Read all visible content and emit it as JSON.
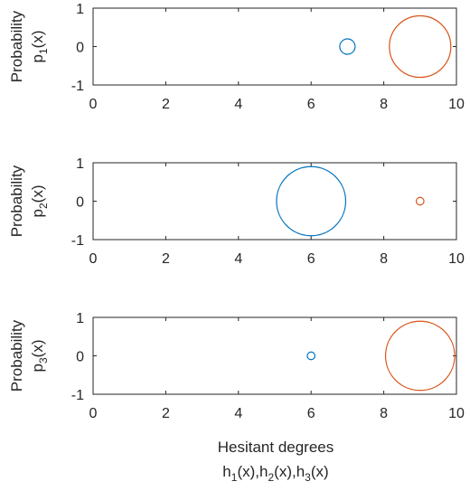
{
  "chart_data": [
    {
      "type": "scatter",
      "ylabel_line1": "Probability",
      "ylabel_var": "p",
      "ylabel_sub": "1",
      "ylabel_arg": "(x)",
      "xlim": [
        0,
        10
      ],
      "ylim": [
        -1,
        1
      ],
      "xticks": [
        "0",
        "2",
        "4",
        "6",
        "8",
        "10"
      ],
      "yticks": [
        "1",
        "0",
        "-1"
      ],
      "grid": false,
      "series": [
        {
          "color": "#0072BD",
          "x": 7,
          "y": 0,
          "radius": 0.2
        },
        {
          "color": "#D95319",
          "x": 9,
          "y": 0,
          "radius": 0.8
        }
      ]
    },
    {
      "type": "scatter",
      "ylabel_line1": "Probability",
      "ylabel_var": "p",
      "ylabel_sub": "2",
      "ylabel_arg": "(x)",
      "xlim": [
        0,
        10
      ],
      "ylim": [
        -1,
        1
      ],
      "xticks": [
        "0",
        "2",
        "4",
        "6",
        "8",
        "10"
      ],
      "yticks": [
        "1",
        "0",
        "-1"
      ],
      "grid": false,
      "series": [
        {
          "color": "#0072BD",
          "x": 6,
          "y": 0,
          "radius": 0.9
        },
        {
          "color": "#D95319",
          "x": 9,
          "y": 0,
          "radius": 0.1
        }
      ]
    },
    {
      "type": "scatter",
      "ylabel_line1": "Probability",
      "ylabel_var": "p",
      "ylabel_sub": "3",
      "ylabel_arg": "(x)",
      "xlim": [
        0,
        10
      ],
      "ylim": [
        -1,
        1
      ],
      "xticks": [
        "0",
        "2",
        "4",
        "6",
        "8",
        "10"
      ],
      "yticks": [
        "1",
        "0",
        "-1"
      ],
      "grid": false,
      "series": [
        {
          "color": "#0072BD",
          "x": 6,
          "y": 0,
          "radius": 0.1
        },
        {
          "color": "#D95319",
          "x": 9,
          "y": 0,
          "radius": 0.9
        }
      ]
    }
  ],
  "xlabel": {
    "line1": "Hesitant degrees",
    "parts": [
      {
        "v": "h",
        "s": "1",
        "a": "(x),"
      },
      {
        "v": "h",
        "s": "2",
        "a": "(x),"
      },
      {
        "v": "h",
        "s": "3",
        "a": "(x)"
      }
    ]
  }
}
